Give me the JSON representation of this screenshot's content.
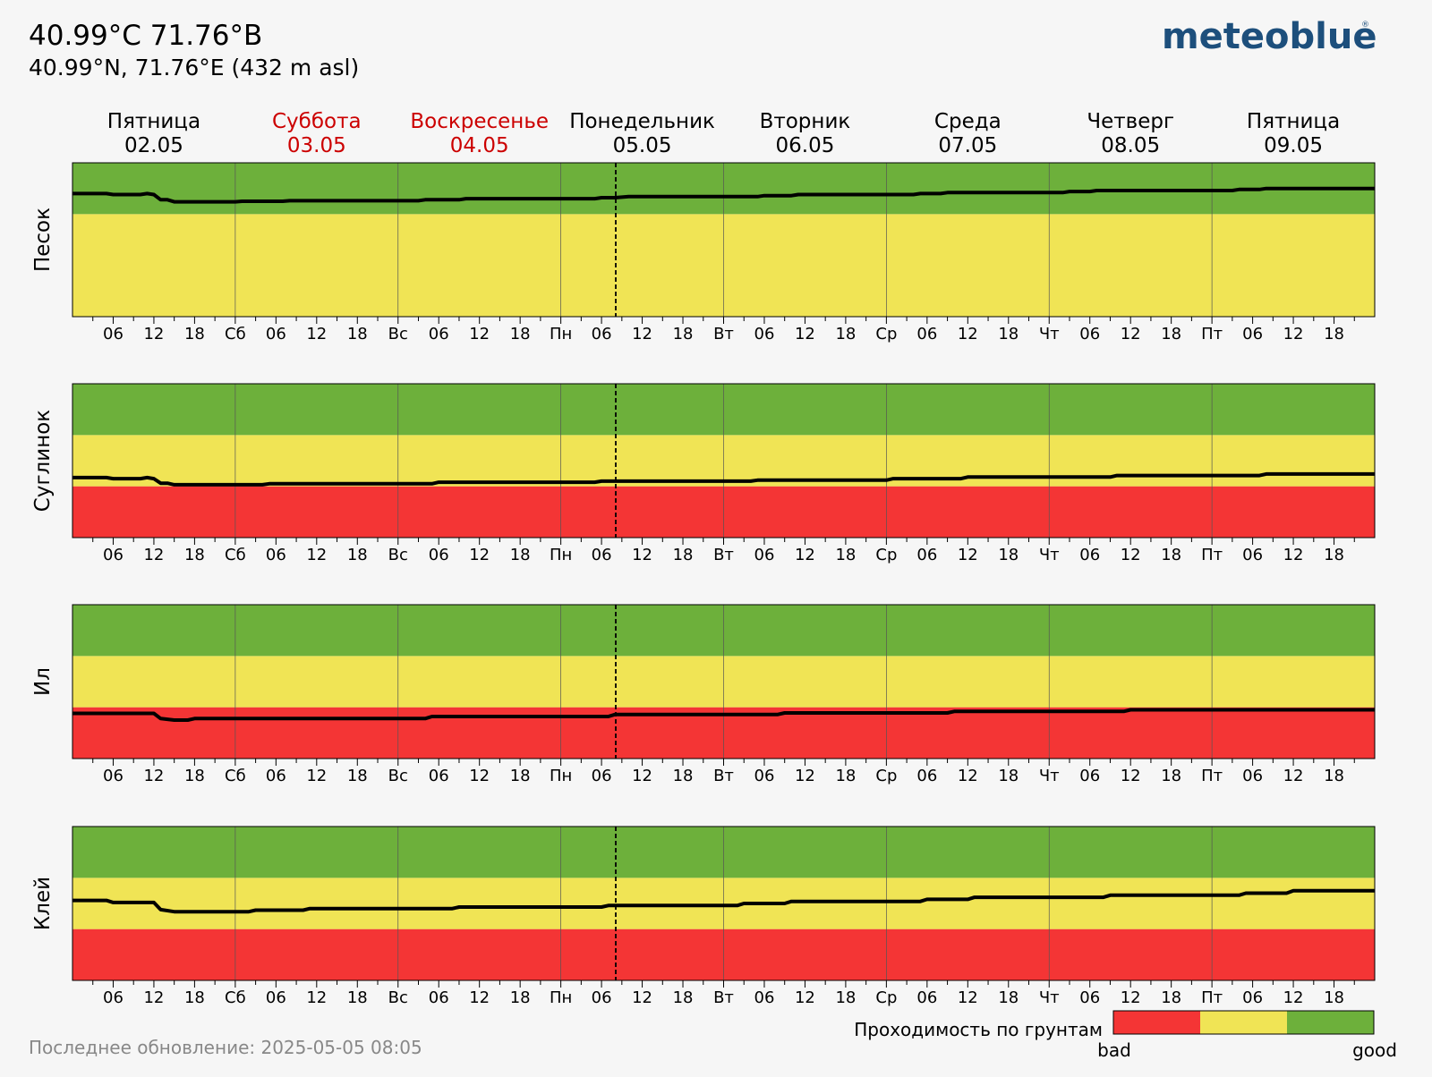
{
  "header": {
    "title": "40.99°C 71.76°B",
    "subtitle": "40.99°N, 71.76°E (432 m asl)",
    "brand": "meteoblue",
    "brand_mark": "®"
  },
  "footer": {
    "updated": "Последнее обновление: 2025-05-05 08:05"
  },
  "legend": {
    "title": "Проходимость по грунтам",
    "low_label": "bad",
    "high_label": "good",
    "colors": [
      "#f43535",
      "#f0e455",
      "#6db03b"
    ]
  },
  "colors": {
    "bad": "#f43535",
    "medium": "#f0e455",
    "good": "#6db03b",
    "weekend_text": "#cc0000",
    "line": "#000000"
  },
  "days": [
    {
      "name": "Пятница",
      "date": "02.05",
      "weekend": false
    },
    {
      "name": "Суббота",
      "date": "03.05",
      "weekend": true
    },
    {
      "name": "Воскресенье",
      "date": "04.05",
      "weekend": true
    },
    {
      "name": "Понедельник",
      "date": "05.05",
      "weekend": false
    },
    {
      "name": "Вторник",
      "date": "06.05",
      "weekend": false
    },
    {
      "name": "Среда",
      "date": "07.05",
      "weekend": false
    },
    {
      "name": "Четверг",
      "date": "08.05",
      "weekend": false
    },
    {
      "name": "Пятница",
      "date": "09.05",
      "weekend": false
    }
  ],
  "chart_data": {
    "type": "line",
    "x_unit": "hours since 2025-05-02 00:00",
    "xlim": [
      0,
      192
    ],
    "ylim": [
      0,
      3
    ],
    "now_hour": 80.1,
    "x_tick_labels": [
      "06",
      "12",
      "18",
      "Сб",
      "06",
      "12",
      "18",
      "Вс",
      "06",
      "12",
      "18",
      "Пн",
      "06",
      "12",
      "18",
      "Вт",
      "06",
      "12",
      "18",
      "Ср",
      "06",
      "12",
      "18",
      "Чт",
      "06",
      "12",
      "18",
      "Пт",
      "06",
      "12",
      "18"
    ],
    "panels": [
      {
        "name": "Песок",
        "bands": [
          {
            "from": 0,
            "to": 2.0,
            "class": "medium"
          },
          {
            "from": 2.0,
            "to": 3,
            "class": "good"
          }
        ],
        "points": [
          [
            0,
            2.4
          ],
          [
            5,
            2.4
          ],
          [
            6,
            2.38
          ],
          [
            10,
            2.38
          ],
          [
            11,
            2.4
          ],
          [
            12,
            2.38
          ],
          [
            13,
            2.28
          ],
          [
            14,
            2.28
          ],
          [
            15,
            2.24
          ],
          [
            24,
            2.24
          ],
          [
            25,
            2.25
          ],
          [
            31,
            2.25
          ],
          [
            32,
            2.26
          ],
          [
            51,
            2.26
          ],
          [
            52,
            2.28
          ],
          [
            57,
            2.28
          ],
          [
            58,
            2.3
          ],
          [
            77,
            2.3
          ],
          [
            78,
            2.32
          ],
          [
            80,
            2.32
          ],
          [
            82,
            2.34
          ],
          [
            96,
            2.34
          ],
          [
            101,
            2.34
          ],
          [
            102,
            2.36
          ],
          [
            106,
            2.36
          ],
          [
            107,
            2.38
          ],
          [
            124,
            2.38
          ],
          [
            125,
            2.4
          ],
          [
            128,
            2.4
          ],
          [
            129,
            2.42
          ],
          [
            146,
            2.42
          ],
          [
            147,
            2.44
          ],
          [
            150,
            2.44
          ],
          [
            151,
            2.46
          ],
          [
            171,
            2.46
          ],
          [
            172,
            2.48
          ],
          [
            175,
            2.48
          ],
          [
            176,
            2.5
          ],
          [
            192,
            2.5
          ]
        ]
      },
      {
        "name": "Суглинок",
        "bands": [
          {
            "from": 0,
            "to": 1.0,
            "class": "bad"
          },
          {
            "from": 1.0,
            "to": 2.0,
            "class": "medium"
          },
          {
            "from": 2.0,
            "to": 3,
            "class": "good"
          }
        ],
        "points": [
          [
            0,
            1.17
          ],
          [
            5,
            1.17
          ],
          [
            6,
            1.15
          ],
          [
            10,
            1.15
          ],
          [
            11,
            1.17
          ],
          [
            12,
            1.15
          ],
          [
            13,
            1.06
          ],
          [
            14,
            1.06
          ],
          [
            15,
            1.03
          ],
          [
            28,
            1.03
          ],
          [
            29,
            1.05
          ],
          [
            53,
            1.05
          ],
          [
            54,
            1.08
          ],
          [
            77,
            1.08
          ],
          [
            78,
            1.1
          ],
          [
            100,
            1.1
          ],
          [
            101,
            1.12
          ],
          [
            120,
            1.12
          ],
          [
            121,
            1.15
          ],
          [
            131,
            1.15
          ],
          [
            132,
            1.18
          ],
          [
            153,
            1.18
          ],
          [
            154,
            1.21
          ],
          [
            175,
            1.21
          ],
          [
            176,
            1.24
          ],
          [
            192,
            1.24
          ]
        ]
      },
      {
        "name": "Ил",
        "bands": [
          {
            "from": 0,
            "to": 1.0,
            "class": "bad"
          },
          {
            "from": 1.0,
            "to": 2.0,
            "class": "medium"
          },
          {
            "from": 2.0,
            "to": 3,
            "class": "good"
          }
        ],
        "points": [
          [
            0,
            0.88
          ],
          [
            12,
            0.88
          ],
          [
            13,
            0.78
          ],
          [
            15,
            0.75
          ],
          [
            17,
            0.75
          ],
          [
            18,
            0.78
          ],
          [
            52,
            0.78
          ],
          [
            53,
            0.82
          ],
          [
            79,
            0.82
          ],
          [
            80,
            0.86
          ],
          [
            104,
            0.86
          ],
          [
            105,
            0.89
          ],
          [
            129,
            0.89
          ],
          [
            130,
            0.92
          ],
          [
            155,
            0.92
          ],
          [
            156,
            0.95
          ],
          [
            192,
            0.95
          ]
        ]
      },
      {
        "name": "Клей",
        "bands": [
          {
            "from": 0,
            "to": 1.0,
            "class": "bad"
          },
          {
            "from": 1.0,
            "to": 2.0,
            "class": "medium"
          },
          {
            "from": 2.0,
            "to": 3,
            "class": "good"
          }
        ],
        "points": [
          [
            0,
            1.56
          ],
          [
            5,
            1.56
          ],
          [
            6,
            1.52
          ],
          [
            12,
            1.52
          ],
          [
            13,
            1.38
          ],
          [
            15,
            1.34
          ],
          [
            26,
            1.34
          ],
          [
            27,
            1.37
          ],
          [
            34,
            1.37
          ],
          [
            35,
            1.4
          ],
          [
            56,
            1.4
          ],
          [
            57,
            1.43
          ],
          [
            78,
            1.43
          ],
          [
            79,
            1.46
          ],
          [
            98,
            1.46
          ],
          [
            99,
            1.5
          ],
          [
            105,
            1.5
          ],
          [
            106,
            1.54
          ],
          [
            125,
            1.54
          ],
          [
            126,
            1.58
          ],
          [
            132,
            1.58
          ],
          [
            133,
            1.62
          ],
          [
            152,
            1.62
          ],
          [
            153,
            1.66
          ],
          [
            172,
            1.66
          ],
          [
            173,
            1.7
          ],
          [
            179,
            1.7
          ],
          [
            180,
            1.75
          ],
          [
            192,
            1.75
          ]
        ]
      }
    ]
  }
}
